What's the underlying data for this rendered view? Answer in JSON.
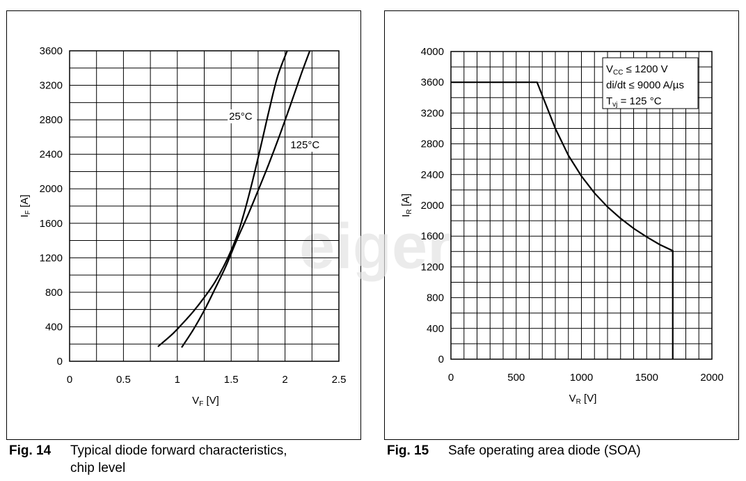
{
  "chart_data": [
    {
      "type": "line",
      "figure_number": "Fig. 14",
      "caption_lines": [
        "Typical diode forward characteristics,",
        "chip level"
      ],
      "xlabel": {
        "main": "V",
        "sub": "F",
        "unit": " [V]"
      },
      "ylabel": {
        "main": "I",
        "sub": "F",
        "unit": " [A]"
      },
      "xlim": [
        0,
        2.5
      ],
      "ylim": [
        0,
        3600
      ],
      "x_ticks": [
        0,
        0.5,
        1,
        1.5,
        2,
        2.5
      ],
      "x_tick_labels": [
        "0",
        "0.5",
        "1",
        "1.5",
        "2",
        "2.5"
      ],
      "y_ticks": [
        0,
        400,
        800,
        1200,
        1600,
        2000,
        2400,
        2800,
        3200,
        3600
      ],
      "y_tick_labels": [
        "0",
        "400",
        "800",
        "1200",
        "1600",
        "2000",
        "2400",
        "2800",
        "3200",
        "3600"
      ],
      "grid": true,
      "grid_x_step": 0.25,
      "grid_y_step": 200,
      "series": [
        {
          "name": "25°C",
          "x": [
            0.82,
            0.95,
            1.05,
            1.15,
            1.25,
            1.35,
            1.45,
            1.55,
            1.62,
            1.7,
            1.78,
            1.85,
            1.93,
            2.02
          ],
          "y": [
            170,
            310,
            440,
            580,
            740,
            920,
            1150,
            1440,
            1720,
            2100,
            2520,
            2900,
            3300,
            3600
          ]
        },
        {
          "name": "125°C",
          "x": [
            1.04,
            1.15,
            1.25,
            1.35,
            1.45,
            1.55,
            1.65,
            1.75,
            1.85,
            1.95,
            2.05,
            2.15,
            2.23
          ],
          "y": [
            160,
            370,
            590,
            840,
            1100,
            1400,
            1680,
            1980,
            2290,
            2620,
            2970,
            3330,
            3600
          ]
        }
      ],
      "annotations": [
        {
          "text": "25°C",
          "x": 1.48,
          "y": 2800
        },
        {
          "text": "125°C",
          "x": 2.05,
          "y": 2470
        }
      ]
    },
    {
      "type": "line",
      "figure_number": "Fig. 15",
      "caption_lines": [
        "Safe operating area diode (SOA)"
      ],
      "xlabel": {
        "main": "V",
        "sub": "R",
        "unit": " [V]"
      },
      "ylabel": {
        "main": "I",
        "sub": "R",
        "unit": " [A]"
      },
      "xlim": [
        0,
        2000
      ],
      "ylim": [
        0,
        4000
      ],
      "x_ticks": [
        0,
        500,
        1000,
        1500,
        2000
      ],
      "x_tick_labels": [
        "0",
        "500",
        "1000",
        "1500",
        "2000"
      ],
      "y_ticks": [
        0,
        400,
        800,
        1200,
        1600,
        2000,
        2400,
        2800,
        3200,
        3600,
        4000
      ],
      "y_tick_labels": [
        "0",
        "400",
        "800",
        "1200",
        "1600",
        "2000",
        "2400",
        "2800",
        "3200",
        "3600",
        "4000"
      ],
      "grid": true,
      "grid_x_step": 100,
      "grid_y_step": 200,
      "series": [
        {
          "x": [
            0,
            660,
            800,
            900,
            1000,
            1100,
            1200,
            1300,
            1400,
            1500,
            1600,
            1700,
            1700
          ],
          "y": [
            3600,
            3600,
            3000,
            2650,
            2380,
            2160,
            1980,
            1830,
            1700,
            1590,
            1490,
            1410,
            0
          ]
        }
      ],
      "legend_box": {
        "lines": [
          {
            "main": "V",
            "sub": "CC",
            "rest": " ≤ 1200 V"
          },
          {
            "main": "di/dt ≤ 9000 A/µs",
            "sub": "",
            "rest": ""
          },
          {
            "main": "T",
            "sub": "vj",
            "rest": " = 125 °C"
          }
        ],
        "placement": "top-right"
      }
    }
  ],
  "watermark": "eiger",
  "colors": {
    "line": "#000000",
    "grid": "#000000",
    "watermark": "#e3e3e3"
  }
}
